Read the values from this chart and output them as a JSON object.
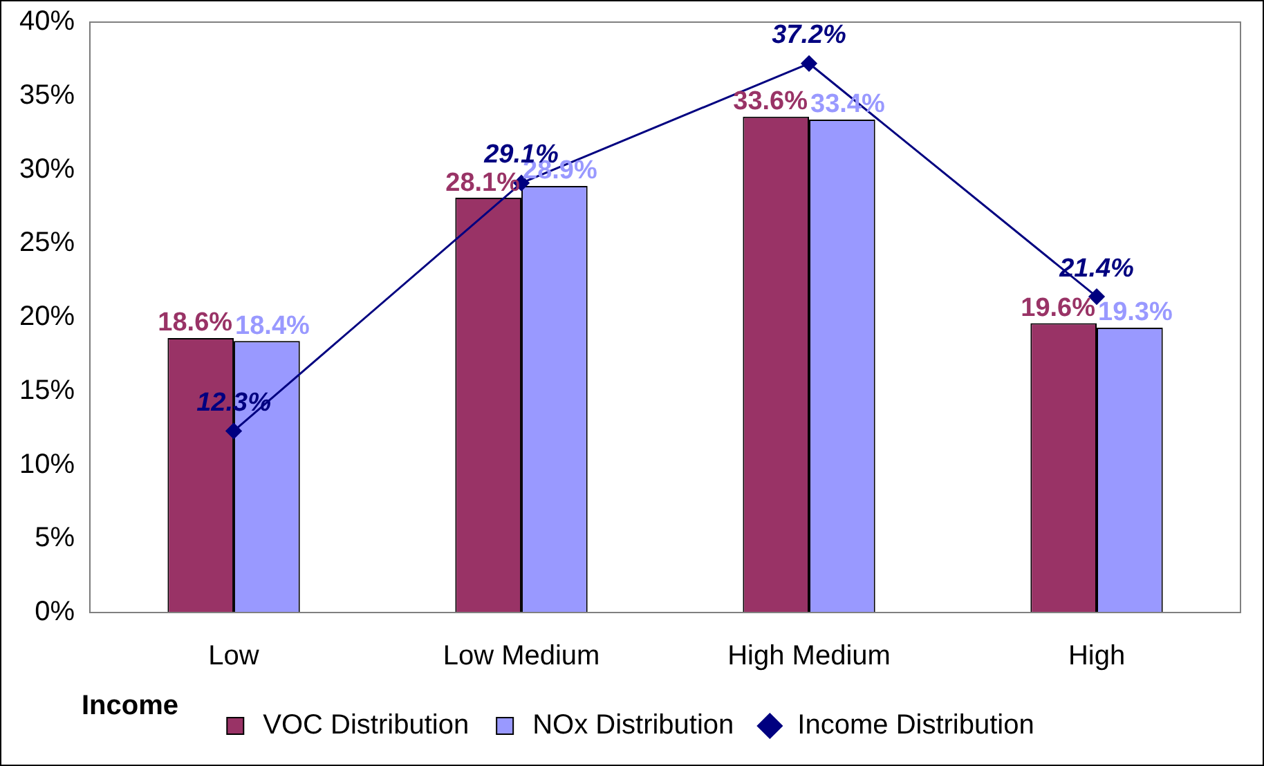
{
  "chart_data": {
    "type": "bar",
    "xlabel": "Income",
    "categories": [
      "Low",
      "Low Medium",
      "High Medium",
      "High"
    ],
    "series": [
      {
        "name": "VOC Distribution",
        "type": "bar",
        "color": "#993366",
        "values": [
          18.6,
          28.1,
          33.6,
          19.6
        ],
        "value_labels": [
          "18.6%",
          "28.1%",
          "33.6%",
          "19.6%"
        ]
      },
      {
        "name": "NOx Distribution",
        "type": "bar",
        "color": "#9999ff",
        "values": [
          18.4,
          28.9,
          33.4,
          19.3
        ],
        "value_labels": [
          "18.4%",
          "28.9%",
          "33.4%",
          "19.3%"
        ]
      },
      {
        "name": "Income Distribution",
        "type": "line",
        "color": "#000080",
        "marker": "diamond",
        "values": [
          12.3,
          29.1,
          37.2,
          21.4
        ],
        "value_labels": [
          "12.3%",
          "29.1%",
          "37.2%",
          "21.4%"
        ]
      }
    ],
    "ylim": [
      0,
      40
    ],
    "yticks": [
      {
        "value": 0,
        "label": "0%"
      },
      {
        "value": 5,
        "label": "5%"
      },
      {
        "value": 10,
        "label": "10%"
      },
      {
        "value": 15,
        "label": "15%"
      },
      {
        "value": 20,
        "label": "20%"
      },
      {
        "value": 25,
        "label": "25%"
      },
      {
        "value": 30,
        "label": "30%"
      },
      {
        "value": 35,
        "label": "35%"
      },
      {
        "value": 40,
        "label": "40%"
      }
    ],
    "grid": false,
    "legend": "bottom"
  }
}
